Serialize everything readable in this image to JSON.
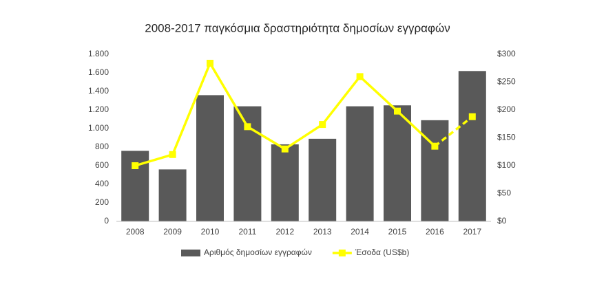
{
  "chart_data": {
    "type": "bar_line",
    "title": "2008-2017 παγκόσμια δραστηριότητα δημοσίων εγγραφών",
    "categories": [
      "2008",
      "2009",
      "2010",
      "2011",
      "2012",
      "2013",
      "2014",
      "2015",
      "2016",
      "2017"
    ],
    "series": [
      {
        "name": "Αριθμός δημοσίων εγγραφών",
        "type": "bar",
        "color": "#595959",
        "values": [
          760,
          560,
          1360,
          1240,
          830,
          890,
          1240,
          1250,
          1090,
          1620
        ]
      },
      {
        "name": "Έσοδα (US$b)",
        "type": "line",
        "axis": "y2",
        "color": "#ffff00",
        "last_segment_style": "dashed",
        "values": [
          100,
          120,
          284,
          170,
          130,
          174,
          260,
          198,
          135,
          188
        ]
      }
    ],
    "ylim": [
      0,
      1800
    ],
    "yticks": [
      0,
      200,
      400,
      600,
      800,
      {
        "value": 1000,
        "label": "1.000"
      },
      {
        "value": 1200,
        "label": "1.200"
      },
      {
        "value": 1400,
        "label": "1.400"
      },
      {
        "value": 1600,
        "label": "1.600"
      },
      {
        "value": 1800,
        "label": "1.800"
      }
    ],
    "y2lim": [
      0,
      300
    ],
    "y2ticks": [
      {
        "value": 0,
        "label": "$0"
      },
      {
        "value": 50,
        "label": "$50"
      },
      {
        "value": 100,
        "label": "$100"
      },
      {
        "value": 150,
        "label": "$150"
      },
      {
        "value": 200,
        "label": "$200"
      },
      {
        "value": 250,
        "label": "$250"
      },
      {
        "value": 300,
        "label": "$300"
      }
    ],
    "grid": false
  }
}
